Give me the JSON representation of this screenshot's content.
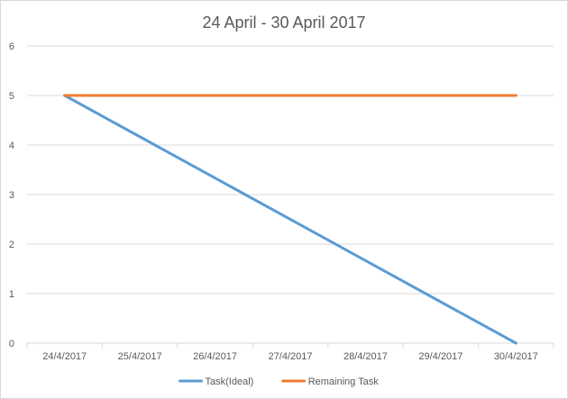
{
  "chart_data": {
    "type": "line",
    "title": "24 April - 30 April 2017",
    "categories": [
      "24/4/2017",
      "25/4/2017",
      "26/4/2017",
      "27/4/2017",
      "28/4/2017",
      "29/4/2017",
      "30/4/2017"
    ],
    "series": [
      {
        "name": "Task(Ideal)",
        "values": [
          5,
          null,
          null,
          null,
          null,
          null,
          0
        ],
        "color": "#5b9bd5"
      },
      {
        "name": "Remaining Task",
        "values": [
          5,
          null,
          null,
          null,
          null,
          null,
          5
        ],
        "color": "#ed7d31"
      }
    ],
    "y_ticks": [
      0,
      1,
      2,
      3,
      4,
      5,
      6
    ],
    "ylim": [
      0,
      6
    ],
    "grid": "horizontal",
    "legend_position": "bottom"
  }
}
